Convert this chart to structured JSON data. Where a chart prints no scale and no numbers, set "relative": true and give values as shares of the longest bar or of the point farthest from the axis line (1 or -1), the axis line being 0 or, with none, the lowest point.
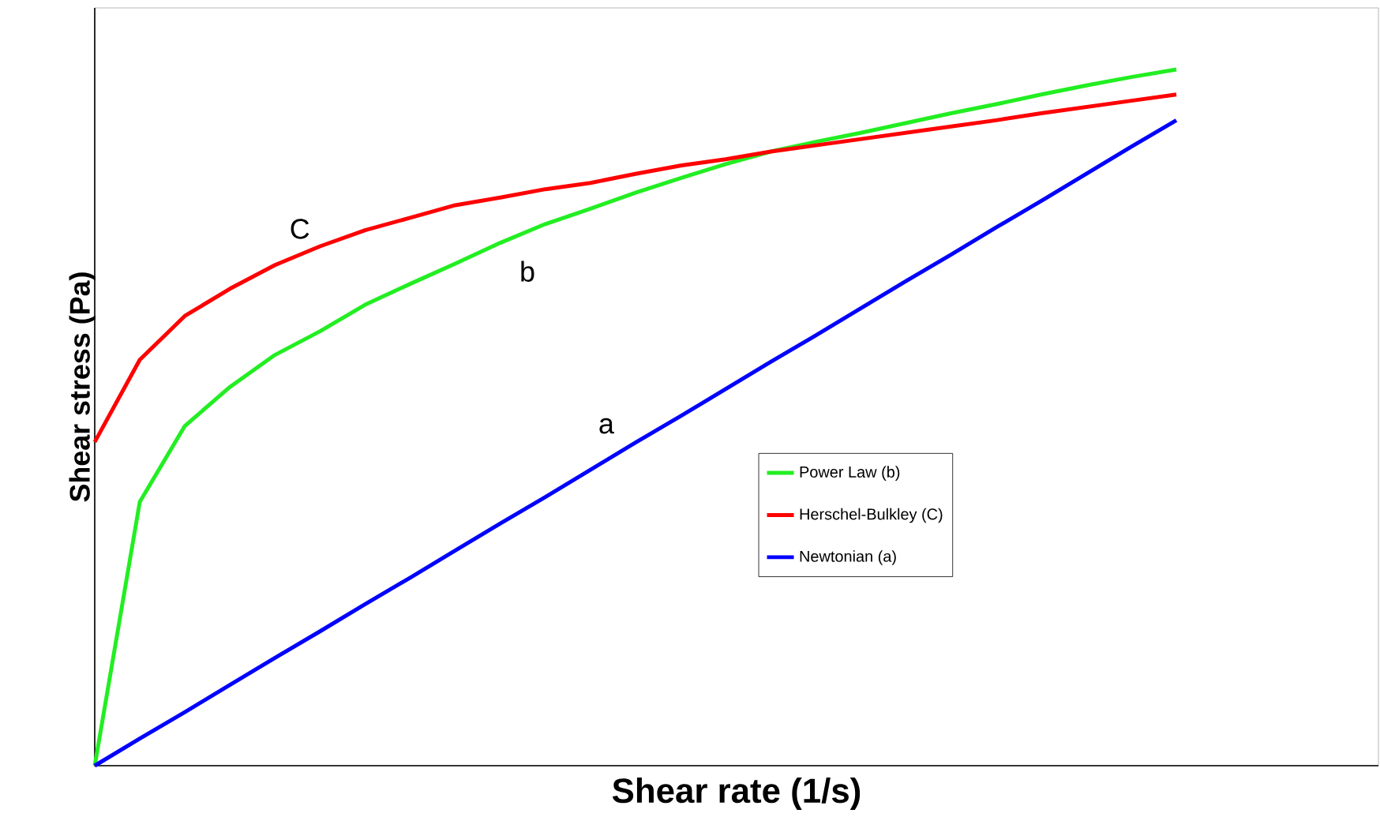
{
  "chart_data": {
    "type": "line",
    "relative": true,
    "xlabel": "Shear rate (1/s)",
    "ylabel": "Shear stress (Pa)",
    "legend": "bottom right",
    "marker": "none",
    "line_style": "solid",
    "categories": [
      null,
      null,
      null,
      null,
      null,
      null,
      null,
      null,
      null,
      null,
      null,
      null,
      null,
      null,
      null,
      null,
      null,
      null,
      null,
      null,
      null,
      null,
      null,
      null,
      null
    ],
    "series": [
      {
        "name": "Power Law (b)",
        "color": "#22ee22",
        "values": [
          0,
          0.379,
          0.488,
          0.544,
          0.59,
          0.624,
          0.662,
          0.692,
          0.721,
          0.751,
          0.778,
          0.8,
          0.823,
          0.844,
          0.864,
          0.882,
          0.896,
          0.909,
          0.923,
          0.937,
          0.95,
          0.964,
          0.977,
          0.989,
          1
        ]
      },
      {
        "name": "Herschel-Bulkley (C)",
        "color": "#ff0000",
        "values": [
          0.465,
          0.583,
          0.646,
          0.685,
          0.719,
          0.746,
          0.769,
          0.787,
          0.805,
          0.816,
          0.828,
          0.837,
          0.85,
          0.862,
          0.871,
          0.882,
          0.891,
          0.9,
          0.909,
          0.918,
          0.927,
          0.937,
          0.946,
          0.955,
          0.964
        ]
      },
      {
        "name": "Newtonian (a)",
        "color": "#0000ff",
        "values": [
          0,
          0.039,
          0.077,
          0.116,
          0.155,
          0.193,
          0.232,
          0.27,
          0.309,
          0.348,
          0.386,
          0.425,
          0.464,
          0.502,
          0.541,
          0.58,
          0.618,
          0.657,
          0.696,
          0.734,
          0.773,
          0.811,
          0.85,
          0.889,
          0.927
        ]
      }
    ],
    "annotations": [
      "C",
      "b",
      "a"
    ]
  }
}
